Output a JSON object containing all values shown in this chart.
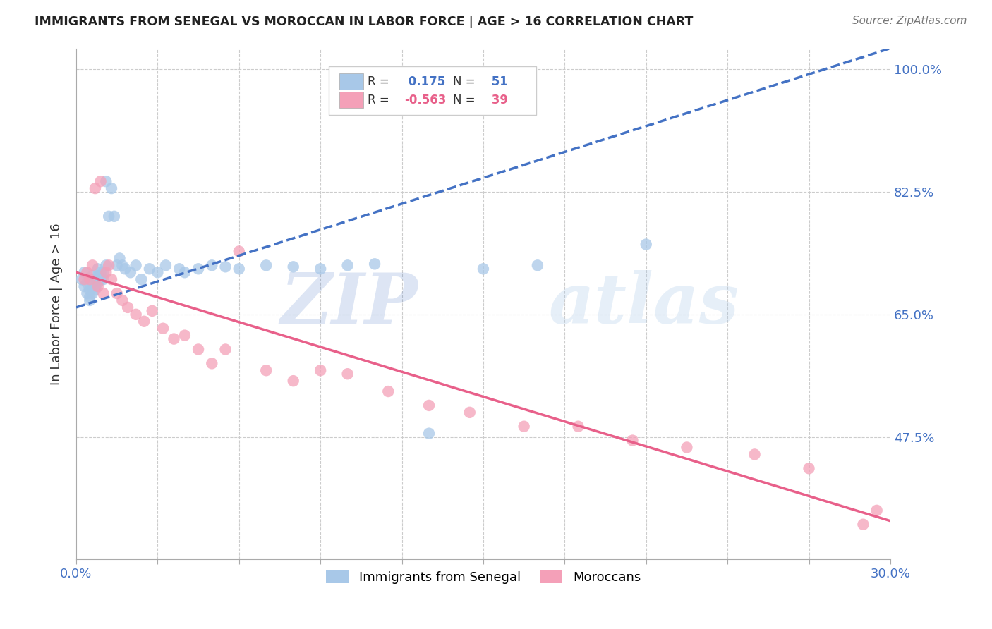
{
  "title": "IMMIGRANTS FROM SENEGAL VS MOROCCAN IN LABOR FORCE | AGE > 16 CORRELATION CHART",
  "source": "Source: ZipAtlas.com",
  "ylabel": "In Labor Force | Age > 16",
  "xmin": 0.0,
  "xmax": 0.3,
  "ymin": 0.3,
  "ymax": 1.03,
  "yticks": [
    0.475,
    0.65,
    0.825,
    1.0
  ],
  "ytick_labels": [
    "47.5%",
    "65.0%",
    "82.5%",
    "100.0%"
  ],
  "senegal_R": 0.175,
  "senegal_N": 51,
  "moroccan_R": -0.563,
  "moroccan_N": 39,
  "senegal_color": "#a8c8e8",
  "moroccan_color": "#f4a0b8",
  "senegal_line_color": "#4472c4",
  "moroccan_line_color": "#e8608a",
  "background_color": "#ffffff",
  "watermark_zip": "ZIP",
  "watermark_atlas": "atlas",
  "senegal_x": [
    0.002,
    0.003,
    0.003,
    0.004,
    0.004,
    0.005,
    0.005,
    0.005,
    0.006,
    0.006,
    0.006,
    0.007,
    0.007,
    0.007,
    0.008,
    0.008,
    0.008,
    0.009,
    0.009,
    0.01,
    0.01,
    0.011,
    0.011,
    0.012,
    0.013,
    0.014,
    0.015,
    0.016,
    0.017,
    0.018,
    0.02,
    0.022,
    0.024,
    0.027,
    0.03,
    0.033,
    0.038,
    0.04,
    0.045,
    0.05,
    0.055,
    0.06,
    0.07,
    0.08,
    0.09,
    0.1,
    0.11,
    0.13,
    0.15,
    0.17,
    0.21
  ],
  "senegal_y": [
    0.7,
    0.69,
    0.71,
    0.68,
    0.695,
    0.675,
    0.685,
    0.67,
    0.68,
    0.695,
    0.705,
    0.685,
    0.69,
    0.7,
    0.695,
    0.705,
    0.715,
    0.7,
    0.71,
    0.7,
    0.71,
    0.72,
    0.84,
    0.79,
    0.83,
    0.79,
    0.72,
    0.73,
    0.72,
    0.715,
    0.71,
    0.72,
    0.7,
    0.715,
    0.71,
    0.72,
    0.715,
    0.71,
    0.715,
    0.72,
    0.718,
    0.715,
    0.72,
    0.718,
    0.715,
    0.72,
    0.722,
    0.48,
    0.715,
    0.72,
    0.75
  ],
  "moroccan_x": [
    0.003,
    0.004,
    0.005,
    0.006,
    0.007,
    0.008,
    0.009,
    0.01,
    0.011,
    0.012,
    0.013,
    0.015,
    0.017,
    0.019,
    0.022,
    0.025,
    0.028,
    0.032,
    0.036,
    0.04,
    0.045,
    0.05,
    0.055,
    0.06,
    0.07,
    0.08,
    0.09,
    0.1,
    0.115,
    0.13,
    0.145,
    0.165,
    0.185,
    0.205,
    0.225,
    0.25,
    0.27,
    0.29,
    0.295
  ],
  "moroccan_y": [
    0.7,
    0.71,
    0.7,
    0.72,
    0.83,
    0.69,
    0.84,
    0.68,
    0.71,
    0.72,
    0.7,
    0.68,
    0.67,
    0.66,
    0.65,
    0.64,
    0.655,
    0.63,
    0.615,
    0.62,
    0.6,
    0.58,
    0.6,
    0.74,
    0.57,
    0.555,
    0.57,
    0.565,
    0.54,
    0.52,
    0.51,
    0.49,
    0.49,
    0.47,
    0.46,
    0.45,
    0.43,
    0.35,
    0.37
  ],
  "senegal_line_x0": 0.0,
  "senegal_line_x1": 0.3,
  "senegal_line_y0": 0.66,
  "senegal_line_y1": 1.03,
  "moroccan_line_x0": 0.0,
  "moroccan_line_x1": 0.3,
  "moroccan_line_y0": 0.71,
  "moroccan_line_y1": 0.355
}
